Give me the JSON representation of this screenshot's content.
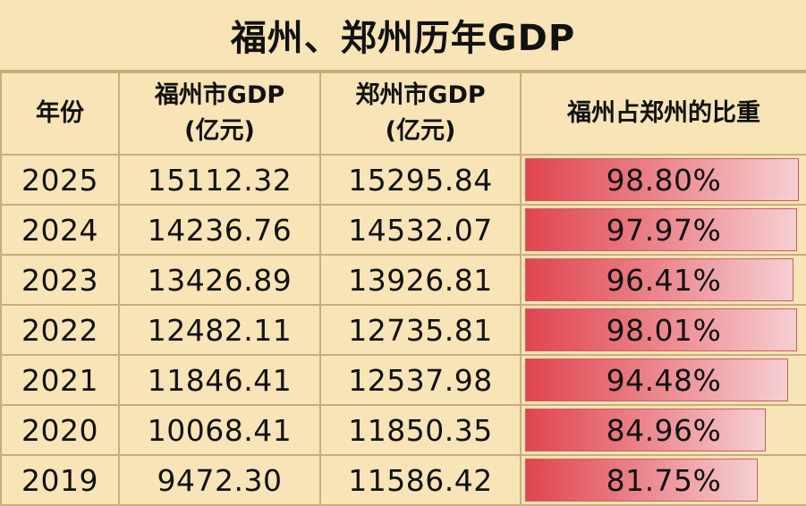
{
  "title": "福州、郑州历年GDP",
  "table": {
    "headers": [
      {
        "line1": "年份",
        "line2": ""
      },
      {
        "line1": "福州市GDP",
        "line2": "(亿元)"
      },
      {
        "line1": "郑州市GDP",
        "line2": "(亿元)"
      },
      {
        "line1": "福州占郑州的比重",
        "line2": ""
      }
    ],
    "rows": [
      {
        "year": "2025",
        "fuzhou": "15112.32",
        "zhengzhou": "15295.84",
        "ratio": "98.80%",
        "ratio_value": 98.8
      },
      {
        "year": "2024",
        "fuzhou": "14236.76",
        "zhengzhou": "14532.07",
        "ratio": "97.97%",
        "ratio_value": 97.97
      },
      {
        "year": "2023",
        "fuzhou": "13426.89",
        "zhengzhou": "13926.81",
        "ratio": "96.41%",
        "ratio_value": 96.41
      },
      {
        "year": "2022",
        "fuzhou": "12482.11",
        "zhengzhou": "12735.81",
        "ratio": "98.01%",
        "ratio_value": 98.01
      },
      {
        "year": "2021",
        "fuzhou": "11846.41",
        "zhengzhou": "12537.98",
        "ratio": "94.48%",
        "ratio_value": 94.48
      },
      {
        "year": "2020",
        "fuzhou": "10068.41",
        "zhengzhou": "11850.35",
        "ratio": "84.96%",
        "ratio_value": 84.96
      },
      {
        "year": "2019",
        "fuzhou": "9472.30",
        "zhengzhou": "11586.42",
        "ratio": "81.75%",
        "ratio_value": 81.75
      }
    ]
  },
  "colors": {
    "background": "#f8e4b6",
    "grid_line": "#c9ad79",
    "bar_dark": "#e0454f",
    "bar_light": "#f6cfd2"
  }
}
